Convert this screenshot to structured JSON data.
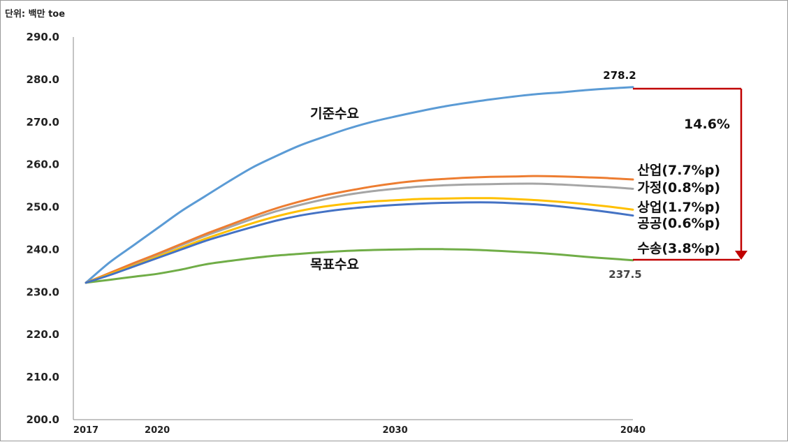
{
  "chart_data": {
    "type": "line",
    "unit_label": "단위: 백만 toe",
    "x_ticks": [
      "2017",
      "2020",
      "2030",
      "2040"
    ],
    "y_ticks": [
      "290.0",
      "280.0",
      "270.0",
      "260.0",
      "250.0",
      "240.0",
      "230.0",
      "220.0",
      "210.0",
      "200.0"
    ],
    "x_range": [
      2017,
      2040
    ],
    "ylim": [
      200,
      290
    ],
    "grid": false,
    "x": [
      2017,
      2018,
      2019,
      2020,
      2021,
      2022,
      2023,
      2024,
      2025,
      2026,
      2027,
      2028,
      2029,
      2030,
      2031,
      2032,
      2033,
      2034,
      2035,
      2036,
      2037,
      2038,
      2039,
      2040
    ],
    "series": [
      {
        "name": "기준수요",
        "color": "#5b9bd5",
        "values": [
          232.2,
          237.0,
          241.0,
          245.0,
          249.0,
          252.5,
          256.0,
          259.3,
          262.0,
          264.5,
          266.5,
          268.4,
          270.0,
          271.3,
          272.5,
          273.6,
          274.5,
          275.3,
          276.0,
          276.6,
          277.0,
          277.5,
          277.9,
          278.2
        ]
      },
      {
        "name": "산업(7.7%p)",
        "color": "#ed7d31",
        "values": [
          232.2,
          234.5,
          236.8,
          239.0,
          241.3,
          243.6,
          245.7,
          247.8,
          249.7,
          251.3,
          252.7,
          253.8,
          254.8,
          255.6,
          256.2,
          256.6,
          256.9,
          257.1,
          257.2,
          257.3,
          257.2,
          257.0,
          256.8,
          256.5
        ]
      },
      {
        "name": "가정(0.8%p)",
        "color": "#a5a5a5",
        "values": [
          232.2,
          234.4,
          236.6,
          238.8,
          241.0,
          243.2,
          245.2,
          247.2,
          249.0,
          250.5,
          251.8,
          252.9,
          253.7,
          254.3,
          254.8,
          255.1,
          255.3,
          255.4,
          255.5,
          255.5,
          255.3,
          255.0,
          254.7,
          254.3
        ]
      },
      {
        "name": "상업(1.7%p)",
        "color": "#ffc000",
        "values": [
          232.2,
          234.2,
          236.2,
          238.3,
          240.4,
          242.5,
          244.4,
          246.2,
          247.8,
          249.1,
          250.1,
          250.8,
          251.3,
          251.6,
          251.9,
          252.0,
          252.1,
          252.1,
          251.9,
          251.6,
          251.2,
          250.7,
          250.1,
          249.4
        ]
      },
      {
        "name": "공공(0.6%p)",
        "color": "#4472c4",
        "values": [
          232.2,
          234.0,
          236.0,
          238.0,
          240.0,
          242.0,
          243.7,
          245.3,
          246.8,
          248.0,
          248.9,
          249.6,
          250.1,
          250.5,
          250.8,
          251.0,
          251.1,
          251.1,
          250.9,
          250.6,
          250.1,
          249.5,
          248.8,
          248.0
        ]
      },
      {
        "name": "수송(3.8%p)",
        "color": "#70ad47",
        "values": [
          232.2,
          232.9,
          233.6,
          234.3,
          235.3,
          236.5,
          237.3,
          238.0,
          238.6,
          239.0,
          239.4,
          239.7,
          239.9,
          240.0,
          240.1,
          240.1,
          240.0,
          239.8,
          239.5,
          239.2,
          238.8,
          238.3,
          237.9,
          237.5
        ]
      }
    ],
    "annotations": {
      "baseline_label": "기준수요",
      "target_label": "목표수요",
      "end_value_top": "278.2",
      "end_value_bottom": "237.5",
      "reduction": "14.6%"
    },
    "colors": {
      "arrow": "#c00000",
      "reduction_text": "#c00000"
    }
  }
}
